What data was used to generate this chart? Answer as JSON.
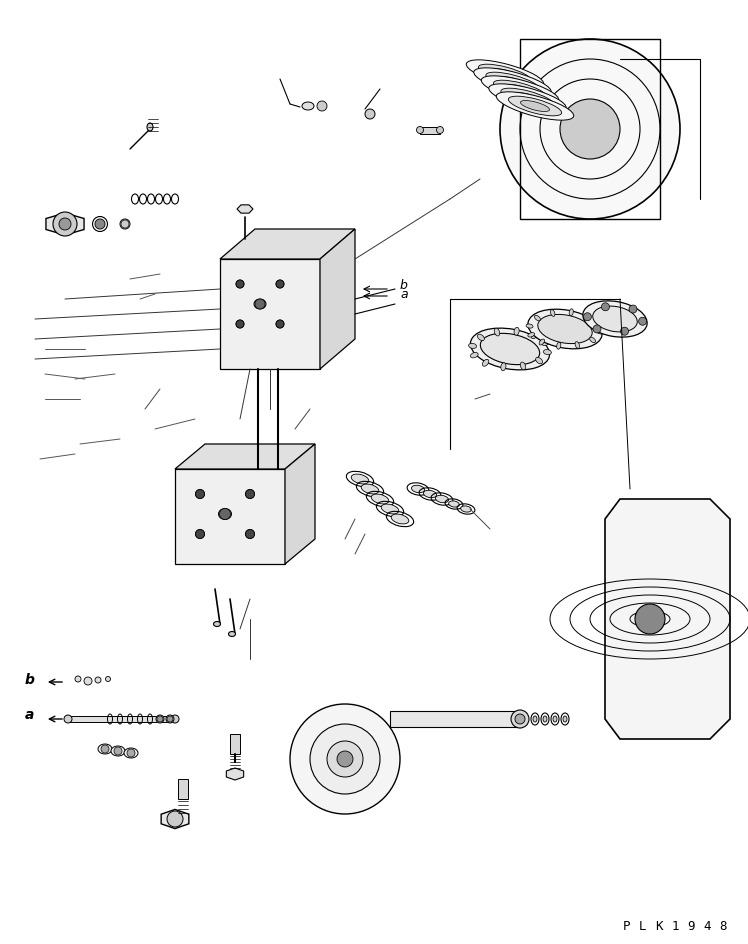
{
  "bg_color": "#ffffff",
  "line_color": "#000000",
  "fig_width": 7.48,
  "fig_height": 9.45,
  "dpi": 100,
  "watermark": "PLK1948",
  "label_a": "a",
  "label_b": "b"
}
